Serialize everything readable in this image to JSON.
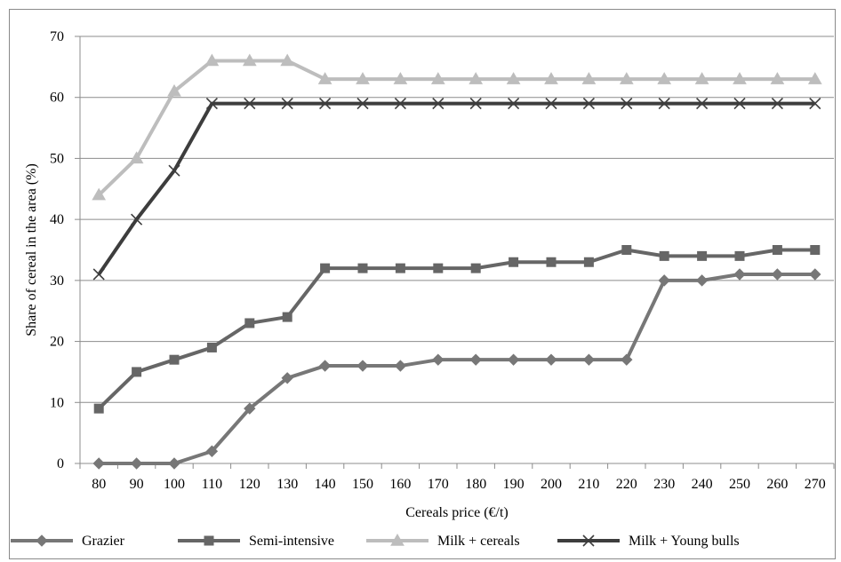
{
  "chart_data": {
    "type": "line",
    "title": "",
    "xlabel": "Cereals price (€/t)",
    "ylabel": "Share of cereal in the area (%)",
    "ylim": [
      0,
      70
    ],
    "yticks": [
      0,
      10,
      20,
      30,
      40,
      50,
      60,
      70
    ],
    "grid": "horizontal",
    "legend_position": "bottom",
    "categories": [
      "80",
      "90",
      "100",
      "110",
      "120",
      "130",
      "140",
      "150",
      "160",
      "170",
      "180",
      "190",
      "200",
      "210",
      "220",
      "230",
      "240",
      "250",
      "260",
      "270"
    ],
    "series": [
      {
        "name": "Grazier",
        "marker": "diamond",
        "color": "#777777",
        "values": [
          0,
          0,
          0,
          2,
          9,
          14,
          16,
          16,
          16,
          17,
          17,
          17,
          17,
          17,
          17,
          30,
          30,
          31,
          31,
          31
        ]
      },
      {
        "name": "Semi-intensive",
        "marker": "square",
        "color": "#666666",
        "values": [
          9,
          15,
          17,
          19,
          23,
          24,
          32,
          32,
          32,
          32,
          32,
          33,
          33,
          33,
          35,
          34,
          34,
          34,
          35,
          35
        ]
      },
      {
        "name": "Milk + cereals",
        "marker": "triangle",
        "color": "#bdbdbd",
        "values": [
          44,
          50,
          61,
          66,
          66,
          66,
          63,
          63,
          63,
          63,
          63,
          63,
          63,
          63,
          63,
          63,
          63,
          63,
          63,
          63
        ]
      },
      {
        "name": "Milk + Young bulls",
        "marker": "cross",
        "color": "#3d3d3d",
        "values": [
          31,
          40,
          48,
          59,
          59,
          59,
          59,
          59,
          59,
          59,
          59,
          59,
          59,
          59,
          59,
          59,
          59,
          59,
          59,
          59
        ]
      }
    ]
  }
}
